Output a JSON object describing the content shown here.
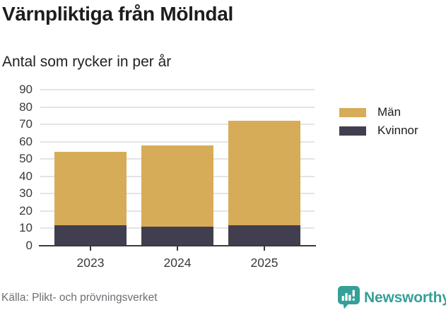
{
  "title": "Värnpliktiga från Mölndal",
  "subtitle": "Antal som rycker in per år",
  "source": "Källa: Plikt- och prövningsverket",
  "brand": {
    "name": "Newsworthy",
    "icon": "newsworthy-speech-bubble-chart-icon",
    "color": "#35a097"
  },
  "colors": {
    "men": "#d7ac58",
    "women": "#413f4f",
    "grid": "#e4e4e4",
    "axis": "#3a3a3a",
    "title_text": "#1d1d1b",
    "source_text": "#6b6f73"
  },
  "legend": [
    {
      "label": "Män",
      "color": "#d7ac58"
    },
    {
      "label": "Kvinnor",
      "color": "#413f4f"
    }
  ],
  "chart_data": {
    "type": "bar",
    "stacked": true,
    "title": "Värnpliktiga från Mölndal",
    "subtitle": "Antal som rycker in per år",
    "categories": [
      "2023",
      "2024",
      "2025"
    ],
    "series": [
      {
        "name": "Kvinnor",
        "color": "#413f4f",
        "values": [
          12,
          11,
          12
        ]
      },
      {
        "name": "Män",
        "color": "#d7ac58",
        "values": [
          42,
          47,
          60
        ]
      }
    ],
    "totals": [
      54,
      58,
      72
    ],
    "xlabel": "",
    "ylabel": "",
    "ylim": [
      0,
      90
    ],
    "yticks": [
      0,
      10,
      20,
      30,
      40,
      50,
      60,
      70,
      80,
      90
    ],
    "grid": true,
    "legend_position": "right"
  }
}
